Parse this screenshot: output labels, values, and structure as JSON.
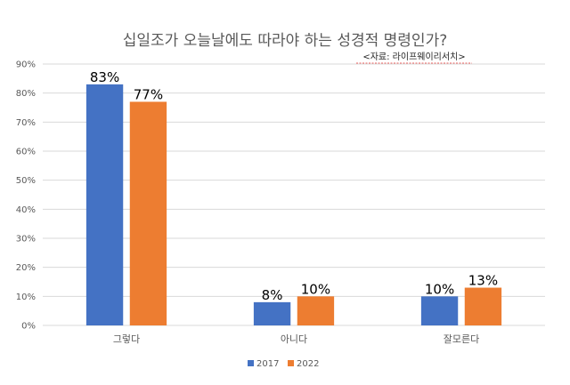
{
  "chart_data": {
    "type": "bar",
    "title": "십일조가 오늘날에도 따라야 하는 성경적 명령인가?",
    "source": "<자료: 라이프웨이리서치>",
    "categories": [
      "그렇다",
      "아니다",
      "잘모른다"
    ],
    "series": [
      {
        "name": "2017",
        "values": [
          83,
          8,
          10
        ],
        "labels": [
          "83%",
          "8%",
          "10%"
        ],
        "color": "#4472C4"
      },
      {
        "name": "2022",
        "values": [
          77,
          10,
          13
        ],
        "labels": [
          "77%",
          "10%",
          "13%"
        ],
        "color": "#ED7D31"
      }
    ],
    "ylim": [
      0,
      90
    ],
    "yticks": [
      "0%",
      "10%",
      "20%",
      "30%",
      "40%",
      "50%",
      "60%",
      "70%",
      "80%",
      "90%"
    ],
    "grid": true,
    "legend": "bottom"
  }
}
